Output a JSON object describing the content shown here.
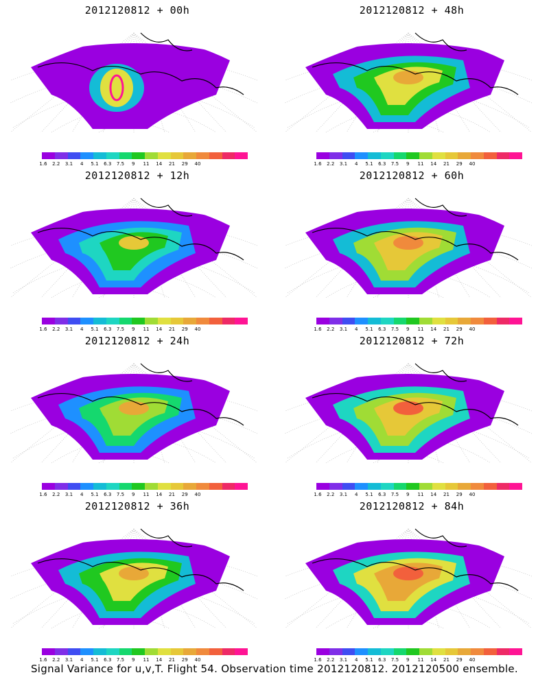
{
  "panels": [
    {
      "title": "2012120812 + 00h",
      "level": 0
    },
    {
      "title": "2012120812 + 48h",
      "level": 4
    },
    {
      "title": "2012120812 + 12h",
      "level": 1
    },
    {
      "title": "2012120812 + 60h",
      "level": 5
    },
    {
      "title": "2012120812 + 24h",
      "level": 2
    },
    {
      "title": "2012120812 + 72h",
      "level": 6
    },
    {
      "title": "2012120812 + 36h",
      "level": 3
    },
    {
      "title": "2012120812 + 84h",
      "level": 7
    }
  ],
  "colorbar": {
    "colors": [
      "#9a00e0",
      "#7f2ee8",
      "#3f4df2",
      "#1e90ff",
      "#14bcd6",
      "#1ed6c2",
      "#15d86e",
      "#20c820",
      "#a0dc35",
      "#e0e040",
      "#e6c838",
      "#e8a838",
      "#f08a3c",
      "#f2603c",
      "#ee2a66",
      "#ff1494"
    ],
    "labels": [
      "1.6",
      "2.2",
      "3.1",
      "4",
      "5.1",
      "6.3",
      "7.5",
      "9",
      "11",
      "14",
      "21",
      "29",
      "40"
    ]
  },
  "footer": "Signal Variance for u,v,T. Flight 54. Observation time 2012120812. 2012120500 ensemble."
}
